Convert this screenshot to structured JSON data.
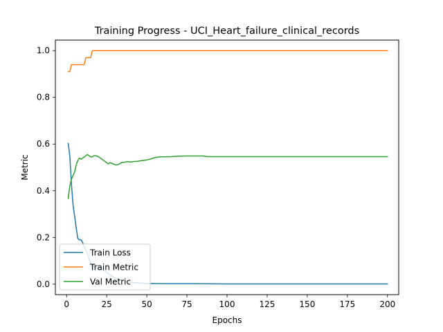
{
  "chart_data": {
    "type": "line",
    "title": "Training Progress - UCI_Heart_failure_clinical_records",
    "xlabel": "Epochs",
    "ylabel": "Metric",
    "xlim": [
      -7,
      207
    ],
    "ylim": [
      -0.045,
      1.045
    ],
    "xticks": [
      0,
      25,
      50,
      75,
      100,
      125,
      150,
      175,
      200
    ],
    "yticks": [
      0.0,
      0.2,
      0.4,
      0.6,
      0.8,
      1.0
    ],
    "xtick_labels": [
      "0",
      "25",
      "50",
      "75",
      "100",
      "125",
      "150",
      "175",
      "200"
    ],
    "ytick_labels": [
      "0.0",
      "0.2",
      "0.4",
      "0.6",
      "0.8",
      "1.0"
    ],
    "grid": false,
    "legend_position": "lower-left",
    "series": [
      {
        "name": "Train Loss",
        "color": "#1f77b4",
        "points": [
          [
            1,
            0.603
          ],
          [
            2,
            0.55
          ],
          [
            3,
            0.43
          ],
          [
            4,
            0.34
          ],
          [
            5,
            0.29
          ],
          [
            6,
            0.24
          ],
          [
            7,
            0.195
          ],
          [
            8,
            0.19
          ],
          [
            9,
            0.19
          ],
          [
            10,
            0.178
          ],
          [
            11,
            0.16
          ],
          [
            12,
            0.145
          ],
          [
            13,
            0.13
          ],
          [
            14,
            0.11
          ],
          [
            15,
            0.09
          ],
          [
            16,
            0.07
          ],
          [
            17,
            0.085
          ],
          [
            18,
            0.07
          ],
          [
            19,
            0.068
          ],
          [
            20,
            0.075
          ],
          [
            21,
            0.072
          ],
          [
            22,
            0.065
          ],
          [
            23,
            0.06
          ],
          [
            24,
            0.055
          ],
          [
            25,
            0.05
          ],
          [
            26,
            0.045
          ],
          [
            27,
            0.04
          ],
          [
            28,
            0.035
          ],
          [
            29,
            0.03
          ],
          [
            30,
            0.028
          ],
          [
            32,
            0.022
          ],
          [
            34,
            0.018
          ],
          [
            36,
            0.014
          ],
          [
            38,
            0.011
          ],
          [
            40,
            0.009
          ],
          [
            42,
            0.007
          ],
          [
            45,
            0.005
          ],
          [
            48,
            0.004
          ],
          [
            50,
            0.003
          ],
          [
            60,
            0.002
          ],
          [
            80,
            0.002
          ],
          [
            100,
            0.001
          ],
          [
            120,
            0.001
          ],
          [
            150,
            0.001
          ],
          [
            175,
            0.001
          ],
          [
            200,
            0.001
          ]
        ]
      },
      {
        "name": "Train Metric",
        "color": "#ff7f0e",
        "points": [
          [
            1,
            0.91
          ],
          [
            2,
            0.91
          ],
          [
            3,
            0.94
          ],
          [
            4,
            0.94
          ],
          [
            5,
            0.94
          ],
          [
            6,
            0.94
          ],
          [
            7,
            0.94
          ],
          [
            8,
            0.94
          ],
          [
            9,
            0.94
          ],
          [
            10,
            0.94
          ],
          [
            11,
            0.94
          ],
          [
            12,
            0.97
          ],
          [
            13,
            0.97
          ],
          [
            14,
            0.97
          ],
          [
            15,
            0.97
          ],
          [
            16,
            1.0
          ],
          [
            17,
            1.0
          ],
          [
            30,
            1.0
          ],
          [
            60,
            1.0
          ],
          [
            100,
            1.0
          ],
          [
            150,
            1.0
          ],
          [
            200,
            1.0
          ]
        ]
      },
      {
        "name": "Val Metric",
        "color": "#2ca02c",
        "points": [
          [
            1,
            0.367
          ],
          [
            2,
            0.42
          ],
          [
            3,
            0.45
          ],
          [
            4,
            0.465
          ],
          [
            5,
            0.48
          ],
          [
            6,
            0.51
          ],
          [
            7,
            0.53
          ],
          [
            8,
            0.54
          ],
          [
            9,
            0.535
          ],
          [
            10,
            0.54
          ],
          [
            11,
            0.545
          ],
          [
            12,
            0.55
          ],
          [
            13,
            0.555
          ],
          [
            14,
            0.55
          ],
          [
            15,
            0.545
          ],
          [
            16,
            0.545
          ],
          [
            17,
            0.55
          ],
          [
            18,
            0.55
          ],
          [
            19,
            0.548
          ],
          [
            20,
            0.545
          ],
          [
            21,
            0.54
          ],
          [
            22,
            0.535
          ],
          [
            23,
            0.53
          ],
          [
            24,
            0.525
          ],
          [
            25,
            0.52
          ],
          [
            26,
            0.515
          ],
          [
            27,
            0.52
          ],
          [
            28,
            0.518
          ],
          [
            29,
            0.515
          ],
          [
            30,
            0.512
          ],
          [
            31,
            0.51
          ],
          [
            32,
            0.512
          ],
          [
            33,
            0.515
          ],
          [
            34,
            0.52
          ],
          [
            36,
            0.522
          ],
          [
            38,
            0.525
          ],
          [
            40,
            0.523
          ],
          [
            42,
            0.525
          ],
          [
            44,
            0.526
          ],
          [
            46,
            0.528
          ],
          [
            48,
            0.53
          ],
          [
            50,
            0.532
          ],
          [
            52,
            0.535
          ],
          [
            54,
            0.54
          ],
          [
            56,
            0.543
          ],
          [
            58,
            0.545
          ],
          [
            60,
            0.545
          ],
          [
            65,
            0.546
          ],
          [
            70,
            0.548
          ],
          [
            75,
            0.549
          ],
          [
            80,
            0.549
          ],
          [
            85,
            0.549
          ],
          [
            88,
            0.546
          ],
          [
            90,
            0.546
          ],
          [
            100,
            0.546
          ],
          [
            120,
            0.546
          ],
          [
            150,
            0.546
          ],
          [
            175,
            0.546
          ],
          [
            200,
            0.546
          ]
        ]
      }
    ]
  }
}
